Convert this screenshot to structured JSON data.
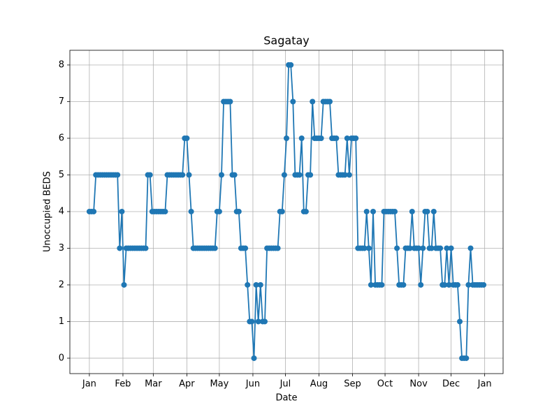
{
  "chart_data": {
    "type": "line",
    "title": "Sagatay",
    "x_label": "Date",
    "y_label": "Unoccupied BEDS",
    "color": "#1f77b4",
    "grid": true,
    "markers": true,
    "x": [
      0,
      2,
      4,
      6,
      8,
      10,
      12,
      14,
      16,
      18,
      20,
      22,
      24,
      26,
      28,
      30,
      32,
      34,
      36,
      38,
      40,
      42,
      44,
      46,
      48,
      50,
      52,
      54,
      56,
      58,
      60,
      62,
      64,
      66,
      68,
      70,
      72,
      74,
      76,
      78,
      80,
      82,
      84,
      86,
      88,
      90,
      92,
      94,
      96,
      98,
      100,
      102,
      104,
      106,
      108,
      110,
      112,
      114,
      116,
      118,
      120,
      122,
      124,
      126,
      128,
      130,
      132,
      134,
      136,
      138,
      140,
      142,
      144,
      146,
      148,
      150,
      152,
      154,
      156,
      158,
      160,
      162,
      164,
      166,
      168,
      170,
      172,
      174,
      176,
      178,
      180,
      182,
      184,
      186,
      188,
      190,
      192,
      194,
      196,
      198,
      200,
      202,
      204,
      206,
      208,
      210,
      212,
      214,
      216,
      218,
      220,
      222,
      224,
      226,
      228,
      230,
      232,
      234,
      236,
      238,
      240,
      242,
      244,
      246,
      248,
      250,
      252,
      254,
      256,
      258,
      260,
      262,
      264,
      266,
      268,
      270,
      272,
      274,
      276,
      278,
      280,
      282,
      284,
      286,
      288,
      290,
      292,
      294,
      296,
      298,
      300,
      302,
      304,
      306,
      308,
      310,
      312,
      314,
      316,
      318,
      320,
      322,
      324,
      326,
      328,
      330,
      332,
      334,
      336,
      338,
      340,
      342,
      344,
      346,
      348,
      350,
      352,
      354,
      356,
      358,
      360,
      362,
      364
    ],
    "values": [
      4,
      4,
      4,
      5,
      5,
      5,
      5,
      5,
      5,
      5,
      5,
      5,
      5,
      5,
      3,
      4,
      2,
      3,
      3,
      3,
      3,
      3,
      3,
      3,
      3,
      3,
      3,
      5,
      5,
      4,
      4,
      4,
      4,
      4,
      4,
      4,
      5,
      5,
      5,
      5,
      5,
      5,
      5,
      5,
      6,
      6,
      5,
      4,
      3,
      3,
      3,
      3,
      3,
      3,
      3,
      3,
      3,
      3,
      3,
      4,
      4,
      5,
      7,
      7,
      7,
      7,
      5,
      5,
      4,
      4,
      3,
      3,
      3,
      2,
      1,
      1,
      0,
      2,
      1,
      2,
      1,
      1,
      3,
      3,
      3,
      3,
      3,
      3,
      4,
      4,
      5,
      6,
      8,
      8,
      7,
      5,
      5,
      5,
      6,
      4,
      4,
      5,
      5,
      7,
      6,
      6,
      6,
      6,
      7,
      7,
      7,
      7,
      6,
      6,
      6,
      5,
      5,
      5,
      5,
      6,
      5,
      6,
      6,
      6,
      3,
      3,
      3,
      3,
      4,
      3,
      2,
      4,
      2,
      2,
      2,
      2,
      4,
      4,
      4,
      4,
      4,
      4,
      3,
      2,
      2,
      2,
      3,
      3,
      3,
      4,
      3,
      3,
      3,
      2,
      3,
      4,
      4,
      3,
      3,
      4,
      3,
      3,
      3,
      2,
      2,
      3,
      2,
      3,
      2,
      2,
      2,
      1,
      0,
      0,
      0,
      2,
      3,
      2,
      2,
      2,
      2,
      2,
      2
    ],
    "xlim": [
      -18,
      382
    ],
    "xticks": [
      {
        "value": 0,
        "label": "Jan"
      },
      {
        "value": 31,
        "label": "Feb"
      },
      {
        "value": 59,
        "label": "Mar"
      },
      {
        "value": 90,
        "label": "Apr"
      },
      {
        "value": 120,
        "label": "May"
      },
      {
        "value": 151,
        "label": "Jun"
      },
      {
        "value": 181,
        "label": "Jul"
      },
      {
        "value": 212,
        "label": "Aug"
      },
      {
        "value": 243,
        "label": "Sep"
      },
      {
        "value": 273,
        "label": "Oct"
      },
      {
        "value": 304,
        "label": "Nov"
      },
      {
        "value": 334,
        "label": "Dec"
      },
      {
        "value": 365,
        "label": "Jan"
      }
    ],
    "ylim": [
      -0.42,
      8.4
    ],
    "yticks": [
      0,
      1,
      2,
      3,
      4,
      5,
      6,
      7,
      8
    ]
  }
}
